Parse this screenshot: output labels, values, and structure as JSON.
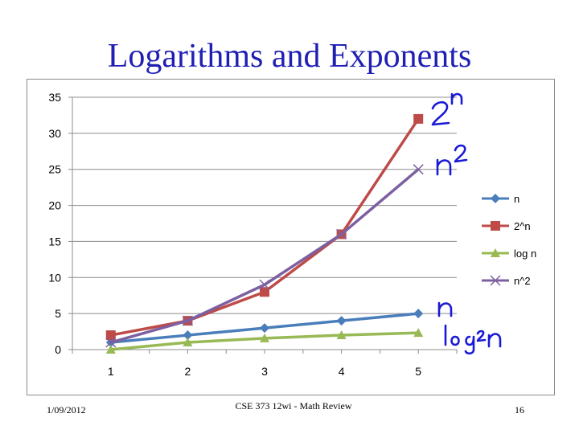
{
  "slide": {
    "title": "Logarithms and Exponents",
    "footer_date": "1/09/2012",
    "footer_center": "CSE 373 12wi - Math Review",
    "page_number": "16"
  },
  "annotations": {
    "two_n": "2^n",
    "n_squared": "n^2",
    "n": "n",
    "log2_n": "log2 n",
    "color": "#1a1ad6"
  },
  "chart_data": {
    "type": "line",
    "x": [
      1,
      2,
      3,
      4,
      5
    ],
    "ylim": [
      0,
      35
    ],
    "yticks": [
      0,
      5,
      10,
      15,
      20,
      25,
      30,
      35
    ],
    "grid": true,
    "legend_position": "right",
    "series": [
      {
        "name": "n",
        "values": [
          1,
          2,
          3,
          4,
          5
        ],
        "color": "#4a7ebb",
        "marker": "diamond"
      },
      {
        "name": "2^n",
        "values": [
          2,
          4,
          8,
          16,
          32
        ],
        "color": "#be4b48",
        "marker": "square"
      },
      {
        "name": "log n",
        "values": [
          0,
          1,
          1.58,
          2,
          2.32
        ],
        "color": "#98b954",
        "marker": "triangle"
      },
      {
        "name": "n^2",
        "values": [
          1,
          4,
          9,
          16,
          25
        ],
        "color": "#7d60a0",
        "marker": "x"
      }
    ]
  }
}
